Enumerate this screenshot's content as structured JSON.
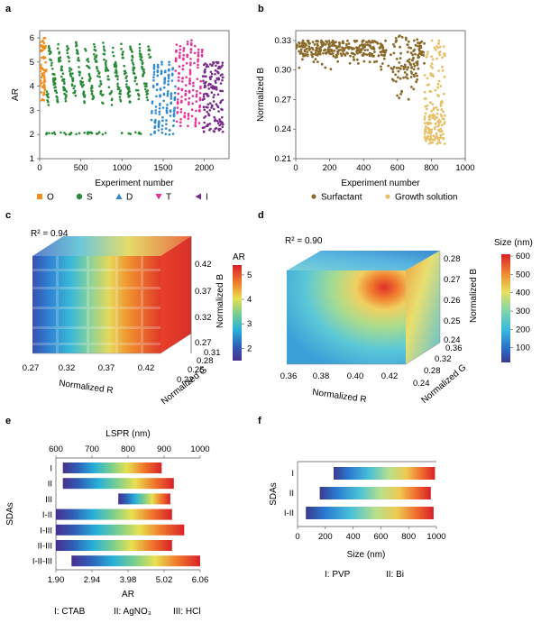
{
  "colors": {
    "O": "#f28c1a",
    "S": "#2a8a3a",
    "D": "#2f8ad1",
    "T": "#e8309a",
    "I": "#7a2a8c",
    "surfactant": "#8a6a2a",
    "growth": "#e8c06a"
  },
  "panels": {
    "a": "a",
    "b": "b",
    "c": "c",
    "d": "d",
    "e": "e",
    "f": "f"
  },
  "chart_data": [
    {
      "id": "a",
      "type": "scatter",
      "xlabel": "Experiment number",
      "ylabel": "AR",
      "xlim": [
        0,
        2300
      ],
      "ylim": [
        1,
        6.3
      ],
      "xticks": [
        0,
        500,
        1000,
        1500,
        2000
      ],
      "yticks": [
        1,
        2,
        3,
        4,
        5,
        6
      ],
      "legend": [
        "O",
        "S",
        "D",
        "T",
        "I"
      ],
      "legend_markers": [
        "square",
        "circle",
        "triangle-up",
        "triangle-down",
        "triangle-left"
      ],
      "series": [
        {
          "name": "O",
          "x_range": [
            0,
            80
          ],
          "y_range": [
            3.4,
            6.0
          ]
        },
        {
          "name": "S",
          "x_range": [
            80,
            1350
          ],
          "y_range": [
            2.0,
            6.0
          ]
        },
        {
          "name": "D",
          "x_range": [
            1350,
            1650
          ],
          "y_range": [
            2.0,
            5.0
          ]
        },
        {
          "name": "T",
          "x_range": [
            1650,
            1980
          ],
          "y_range": [
            2.3,
            5.9
          ]
        },
        {
          "name": "I",
          "x_range": [
            1980,
            2230
          ],
          "y_range": [
            2.1,
            5.0
          ]
        }
      ]
    },
    {
      "id": "b",
      "type": "scatter",
      "xlabel": "Experiment number",
      "ylabel": "Normalized B",
      "xlim": [
        0,
        1000
      ],
      "ylim": [
        0.21,
        0.34
      ],
      "xticks": [
        0,
        200,
        400,
        600,
        800,
        1000
      ],
      "yticks": [
        0.21,
        0.24,
        0.27,
        0.3,
        0.33
      ],
      "legend": [
        "Surfactant",
        "Growth solution"
      ],
      "series": [
        {
          "name": "Surfactant",
          "x_range": [
            0,
            760
          ],
          "y_range": [
            0.27,
            0.335
          ]
        },
        {
          "name": "Growth solution",
          "x_range": [
            760,
            880
          ],
          "y_range": [
            0.22,
            0.33
          ]
        }
      ]
    },
    {
      "id": "c",
      "type": "heatmap",
      "r2": "R² = 0.94",
      "xlabel": "Normalized R",
      "ylabel": "Normalized G",
      "zlabel": "Normalized B",
      "xticks": [
        "0.27",
        "0.32",
        "0.37",
        "0.42"
      ],
      "yticks": [
        "0.22",
        "0.25",
        "0.28",
        "0.31"
      ],
      "zticks": [
        "0.27",
        "0.32",
        "0.37",
        "0.42"
      ],
      "colorbar_label": "AR",
      "colorbar_ticks": [
        "2",
        "3",
        "4",
        "5"
      ],
      "colorbar_range": [
        1.5,
        5.4
      ]
    },
    {
      "id": "d",
      "type": "heatmap",
      "r2": "R² = 0.90",
      "xlabel": "Normalized R",
      "ylabel": "Normalized G",
      "zlabel": "Normalized B",
      "xticks": [
        "0.36",
        "0.38",
        "0.40",
        "0.42"
      ],
      "yticks": [
        "0.24",
        "0.28",
        "0.32",
        "0.36"
      ],
      "zticks": [
        "0.24",
        "0.25",
        "0.26",
        "0.27",
        "0.28"
      ],
      "colorbar_label": "Size (nm)",
      "colorbar_ticks": [
        "100",
        "200",
        "300",
        "400",
        "500",
        "600"
      ],
      "colorbar_range": [
        20,
        610
      ]
    },
    {
      "id": "e",
      "type": "bar",
      "ylabel": "SDAs",
      "top_axis_label": "LSPR (nm)",
      "top_ticks": [
        "600",
        "700",
        "800",
        "900",
        "1000"
      ],
      "top_lim": [
        600,
        1000
      ],
      "xlabel": "AR",
      "bottom_ticks": [
        "1.90",
        "2.94",
        "3.98",
        "5.02",
        "6.06"
      ],
      "xlim": [
        1.9,
        6.06
      ],
      "categories": [
        "I",
        "II",
        "III",
        "I-II",
        "I-III",
        "II-III",
        "I-II-III"
      ],
      "ranges": [
        [
          2.1,
          4.95
        ],
        [
          2.1,
          5.3
        ],
        [
          3.7,
          5.2
        ],
        [
          1.9,
          5.25
        ],
        [
          1.9,
          5.6
        ],
        [
          1.9,
          5.25
        ],
        [
          2.35,
          6.06
        ]
      ],
      "legend_text": [
        "I: CTAB",
        "II: AgNO₃",
        "III: HCl"
      ]
    },
    {
      "id": "f",
      "type": "bar",
      "ylabel": "SDAs",
      "xlabel": "Size (nm)",
      "xticks": [
        "0",
        "200",
        "400",
        "600",
        "800",
        "1000"
      ],
      "xlim": [
        0,
        1000
      ],
      "categories": [
        "I",
        "II",
        "I-II"
      ],
      "ranges": [
        [
          260,
          990
        ],
        [
          160,
          960
        ],
        [
          60,
          980
        ]
      ],
      "legend_text": [
        "I: PVP",
        "II: Bi"
      ]
    }
  ]
}
